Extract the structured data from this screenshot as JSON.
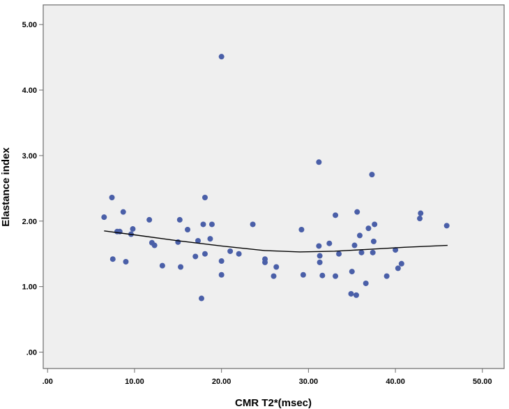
{
  "chart_data": {
    "type": "scatter",
    "title": "",
    "xlabel": "CMR T2*(msec)",
    "ylabel": "Elastance index",
    "xlim": [
      -0.5,
      52.5
    ],
    "ylim": [
      -0.25,
      5.3
    ],
    "x_ticks": [
      0,
      10,
      20,
      30,
      40,
      50
    ],
    "x_tick_labels": [
      ".00",
      "10.00",
      "20.00",
      "30.00",
      "40.00",
      "50.00"
    ],
    "y_ticks": [
      0,
      1,
      2,
      3,
      4,
      5
    ],
    "y_tick_labels": [
      ".00",
      "1.00",
      "2.00",
      "3.00",
      "4.00",
      "5.00"
    ],
    "grid": false,
    "legend": "none",
    "colors": {
      "point": "#4a5fa8",
      "fit_line": "#000000",
      "plot_background": "#efefef",
      "frame": "#6b6b6b"
    },
    "points": {
      "x": [
        6.5,
        7.4,
        7.5,
        8.0,
        8.3,
        8.7,
        9.0,
        9.6,
        9.8,
        11.7,
        12.0,
        12.3,
        13.2,
        15.0,
        15.2,
        15.3,
        16.1,
        17.0,
        17.3,
        17.7,
        17.9,
        18.1,
        18.1,
        18.7,
        18.9,
        20.0,
        20.0,
        20.0,
        21.0,
        22.0,
        23.6,
        25.0,
        25.0,
        26.0,
        26.3,
        29.2,
        29.4,
        31.2,
        31.2,
        31.3,
        31.3,
        31.6,
        32.4,
        33.1,
        33.1,
        33.5,
        34.9,
        35.0,
        35.3,
        35.5,
        35.6,
        35.9,
        36.1,
        36.6,
        36.9,
        37.3,
        37.4,
        37.5,
        37.6,
        39.0,
        40.0,
        40.3,
        40.7,
        42.8,
        42.9,
        45.9
      ],
      "y": [
        2.06,
        2.36,
        1.42,
        1.84,
        1.84,
        2.14,
        1.38,
        1.8,
        1.88,
        2.02,
        1.67,
        1.63,
        1.32,
        1.68,
        2.02,
        1.3,
        1.87,
        1.46,
        1.7,
        0.82,
        1.95,
        2.36,
        1.5,
        1.73,
        1.95,
        4.51,
        1.39,
        1.18,
        1.54,
        1.5,
        1.95,
        1.42,
        1.37,
        1.16,
        1.3,
        1.87,
        1.18,
        2.9,
        1.62,
        1.47,
        1.37,
        1.17,
        1.66,
        2.09,
        1.16,
        1.5,
        0.89,
        1.23,
        1.63,
        0.87,
        2.14,
        1.78,
        1.52,
        1.05,
        1.89,
        2.71,
        1.52,
        1.69,
        1.95,
        1.16,
        1.56,
        1.28,
        1.35,
        2.04,
        2.12,
        1.93
      ]
    },
    "fit_line": {
      "x": [
        6.5,
        10,
        15,
        20,
        25,
        29,
        33,
        37,
        41,
        46
      ],
      "y": [
        1.85,
        1.79,
        1.7,
        1.62,
        1.55,
        1.53,
        1.54,
        1.57,
        1.6,
        1.63
      ]
    }
  }
}
